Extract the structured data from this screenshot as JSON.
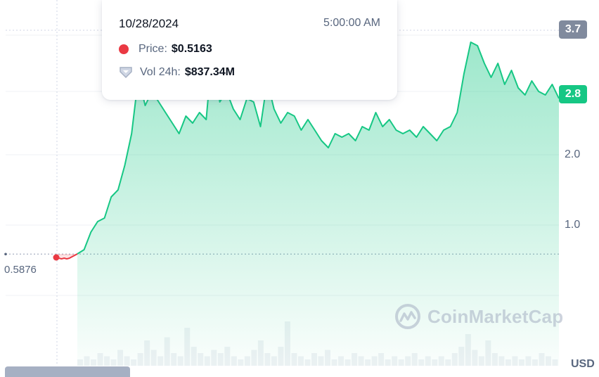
{
  "tooltip": {
    "date": "10/28/2024",
    "time": "5:00:00 AM",
    "price_label": "Price:",
    "price_value": "$0.5163",
    "volume_label": "Vol 24h:",
    "volume_value": "$837.34M"
  },
  "badges": {
    "high": "3.7",
    "current": "2.8"
  },
  "left_price_label": "0.5876",
  "currency": "USD",
  "watermark": "CoinMarketCap",
  "colors": {
    "up": "#16c784",
    "down": "#ea3943",
    "badge_grey": "#808a9d",
    "axis_text": "#58667e"
  },
  "chart_data": {
    "type": "area",
    "title": "",
    "xlabel": "",
    "ylabel": "USD",
    "ylim": [
      -1.0,
      4.0
    ],
    "y_ticks": [
      1.0,
      2.0
    ],
    "reference_value": 0.5876,
    "grid": true,
    "series": [
      {
        "color": "#ea3943",
        "values": [
          0.54,
          0.53,
          0.52,
          0.53,
          0.52,
          0.53,
          0.55,
          0.57,
          0.59
        ]
      },
      {
        "color": "#16c784",
        "values": [
          0.59,
          0.65,
          0.9,
          1.05,
          1.1,
          1.4,
          1.5,
          1.85,
          2.3,
          3.1,
          2.7,
          2.9,
          2.75,
          2.6,
          2.45,
          2.3,
          2.55,
          2.45,
          2.6,
          2.5,
          3.6,
          2.75,
          2.9,
          2.65,
          2.5,
          2.8,
          2.75,
          2.4,
          3.05,
          2.65,
          2.45,
          2.6,
          2.55,
          2.35,
          2.5,
          2.35,
          2.2,
          2.1,
          2.3,
          2.25,
          2.3,
          2.2,
          2.4,
          2.35,
          2.6,
          2.4,
          2.5,
          2.35,
          2.3,
          2.35,
          2.25,
          2.4,
          2.3,
          2.2,
          2.35,
          2.4,
          2.6,
          3.15,
          3.6,
          3.55,
          3.3,
          3.1,
          3.3,
          3.0,
          3.2,
          2.95,
          2.85,
          3.05,
          2.9,
          2.85,
          3.0,
          2.8
        ]
      }
    ],
    "volume_bars": [
      2,
      3,
      2,
      4,
      3,
      2,
      5,
      3,
      2,
      4,
      8,
      5,
      3,
      9,
      4,
      3,
      12,
      6,
      4,
      3,
      5,
      4,
      6,
      3,
      2,
      3,
      5,
      8,
      4,
      3,
      6,
      14,
      4,
      3,
      2,
      4,
      3,
      5,
      2,
      3,
      2,
      4,
      3,
      2,
      3,
      4,
      2,
      3,
      2,
      3,
      4,
      2,
      3,
      2,
      3,
      2,
      4,
      6,
      10,
      5,
      3,
      8,
      4,
      3,
      2,
      3,
      2,
      3,
      2,
      4,
      3,
      2
    ]
  }
}
